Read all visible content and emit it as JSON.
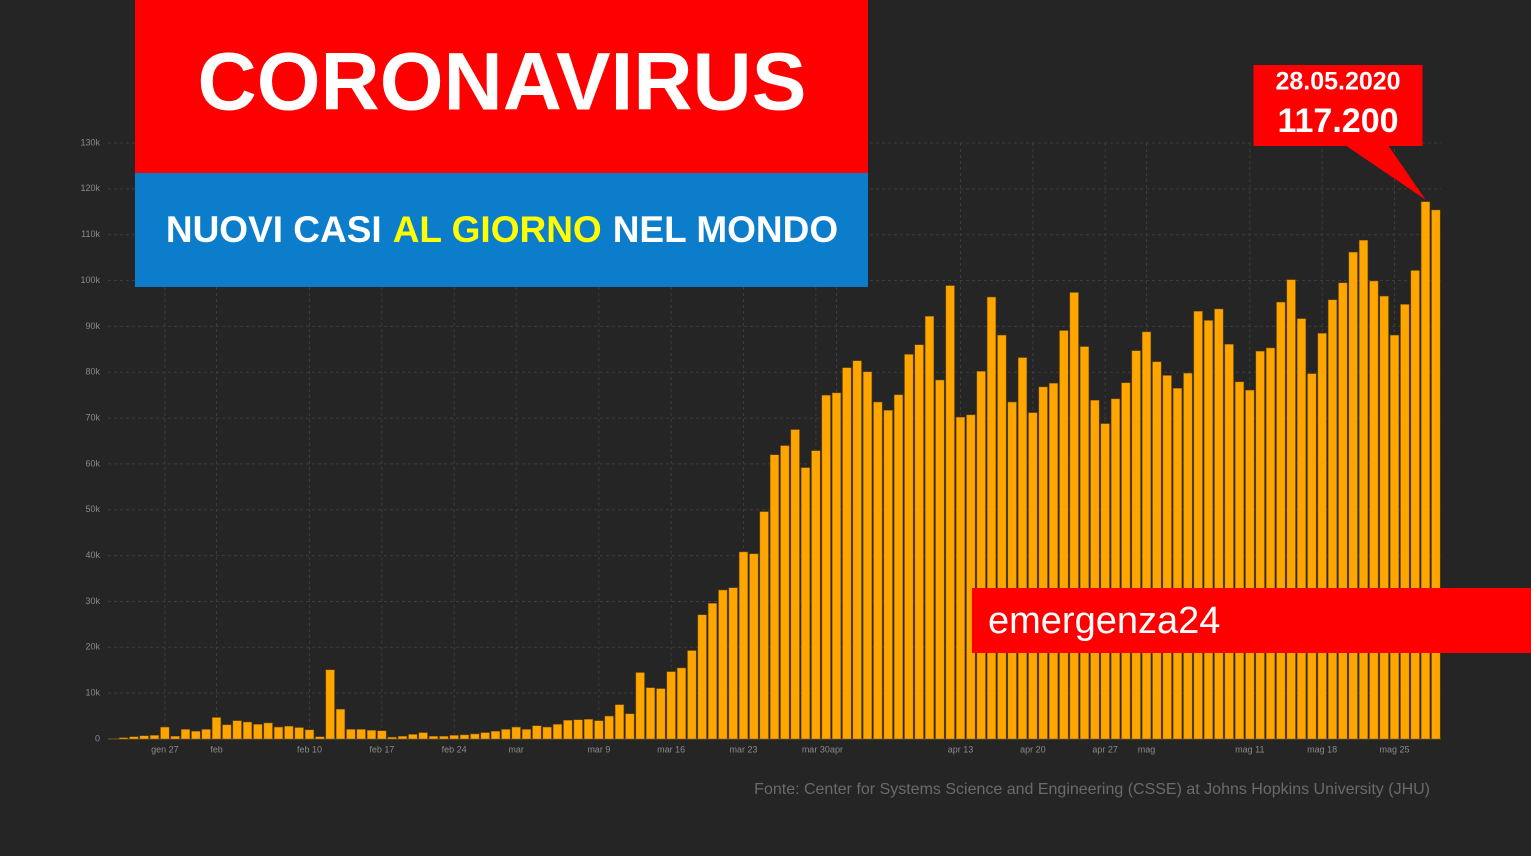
{
  "chart_data": {
    "type": "bar",
    "title": "CORONAVIRUS",
    "subtitle": [
      "NUOVI CASI",
      "AL GIORNO",
      "NEL MONDO"
    ],
    "annotation": "28.05.2020",
    "brand": "emergenza24",
    "source": "Fonte: Center for Systems Science and Engineering (CSSE) at Johns Hopkins University (JHU)",
    "color": "#ffa500",
    "grid": true,
    "ylim": [
      0,
      130000
    ],
    "yticks": [
      0,
      {
        "value": 10000,
        "label": "10k"
      },
      {
        "value": 20000,
        "label": "20k"
      },
      {
        "value": 30000,
        "label": "30k"
      },
      {
        "value": 40000,
        "label": "40k"
      },
      {
        "value": 50000,
        "label": "50k"
      },
      {
        "value": 60000,
        "label": "60k"
      },
      {
        "value": 70000,
        "label": "70k"
      },
      {
        "value": 80000,
        "label": "80k"
      },
      {
        "value": 90000,
        "label": "90k"
      },
      {
        "value": 100000,
        "label": "100k"
      },
      {
        "value": 110000,
        "label": "110k"
      },
      {
        "value": 120000,
        "label": "120k"
      },
      {
        "value": 130000,
        "label": "130k"
      }
    ],
    "categories": [
      null,
      null,
      null,
      null,
      null,
      "gen 27",
      null,
      null,
      null,
      null,
      "feb",
      null,
      null,
      null,
      null,
      null,
      null,
      null,
      null,
      "feb 10",
      null,
      null,
      null,
      null,
      null,
      null,
      "feb 17",
      null,
      null,
      null,
      null,
      null,
      null,
      "feb 24",
      null,
      null,
      null,
      null,
      null,
      "mar",
      null,
      null,
      null,
      null,
      null,
      null,
      null,
      "mar 9",
      null,
      null,
      null,
      null,
      null,
      null,
      "mar 16",
      null,
      null,
      null,
      null,
      null,
      null,
      "mar 23",
      null,
      null,
      null,
      null,
      null,
      null,
      "mar 30",
      null,
      "apr",
      null,
      null,
      null,
      null,
      null,
      null,
      null,
      null,
      null,
      null,
      null,
      "apr 13",
      null,
      null,
      null,
      null,
      null,
      null,
      "apr 20",
      null,
      null,
      null,
      null,
      null,
      null,
      "apr 27",
      null,
      null,
      null,
      "mag",
      null,
      null,
      null,
      null,
      null,
      null,
      null,
      null,
      null,
      "mag 11",
      null,
      null,
      null,
      null,
      null,
      null,
      "mag 18",
      null,
      null,
      null,
      null,
      null,
      null,
      "mag 25",
      null,
      null,
      null,
      null
    ],
    "values": [
      100,
      300,
      500,
      700,
      800,
      2600,
      600,
      2100,
      1700,
      2100,
      4700,
      3100,
      4000,
      3700,
      3200,
      3500,
      2600,
      2800,
      2500,
      2000,
      500,
      15100,
      6500,
      2100,
      2100,
      1900,
      1800,
      400,
      600,
      1000,
      1400,
      600,
      600,
      800,
      900,
      1100,
      1400,
      1700,
      2100,
      2600,
      2100,
      2900,
      2600,
      3200,
      4100,
      4200,
      4300,
      4000,
      5000,
      7500,
      5500,
      14500,
      11200,
      11000,
      14700,
      15500,
      19300,
      27100,
      29600,
      32500,
      33000,
      40800,
      40400,
      49600,
      62000,
      64000,
      67500,
      59200,
      62900,
      75000,
      75500,
      81000,
      82500,
      80100,
      73500,
      71700,
      75100,
      83900,
      86000,
      92200,
      78300,
      98900,
      70200,
      70700,
      80200,
      96400,
      88100,
      73500,
      83200,
      71200,
      76800,
      77600,
      89100,
      97400,
      85600,
      73900,
      68800,
      74200,
      77700,
      84700,
      88800,
      82300,
      79300,
      76500,
      79800,
      93300,
      91300,
      93800,
      86100,
      77900,
      76100,
      84600,
      85300,
      95300,
      100200,
      91700,
      79700,
      88500,
      95800,
      99500,
      106200,
      108800,
      99900,
      96600,
      88100,
      94800,
      102200,
      117200,
      115400
    ],
    "value_labels": [
      null,
      null,
      null,
      null,
      null,
      null,
      null,
      null,
      null,
      null,
      null,
      null,
      null,
      null,
      null,
      null,
      null,
      null,
      null,
      null,
      null,
      null,
      null,
      null,
      null,
      null,
      null,
      null,
      null,
      null,
      null,
      null,
      null,
      null,
      null,
      null,
      null,
      null,
      null,
      null,
      null,
      null,
      null,
      null,
      null,
      null,
      null,
      null,
      null,
      null,
      null,
      null,
      null,
      null,
      null,
      null,
      null,
      null,
      null,
      null,
      null,
      null,
      null,
      null,
      null,
      null,
      null,
      null,
      null,
      null,
      null,
      null,
      null,
      null,
      null,
      null,
      null,
      null,
      null,
      null,
      null,
      null,
      null,
      null,
      null,
      null,
      null,
      null,
      null,
      null,
      null,
      null,
      null,
      null,
      null,
      null,
      null,
      null,
      null,
      null,
      null,
      null,
      null,
      null,
      null,
      null,
      null,
      null,
      null,
      null,
      null,
      null,
      null,
      null,
      null,
      null,
      null,
      null,
      null,
      null,
      null,
      null,
      null,
      null,
      null,
      null,
      null,
      "117.200",
      null
    ]
  }
}
